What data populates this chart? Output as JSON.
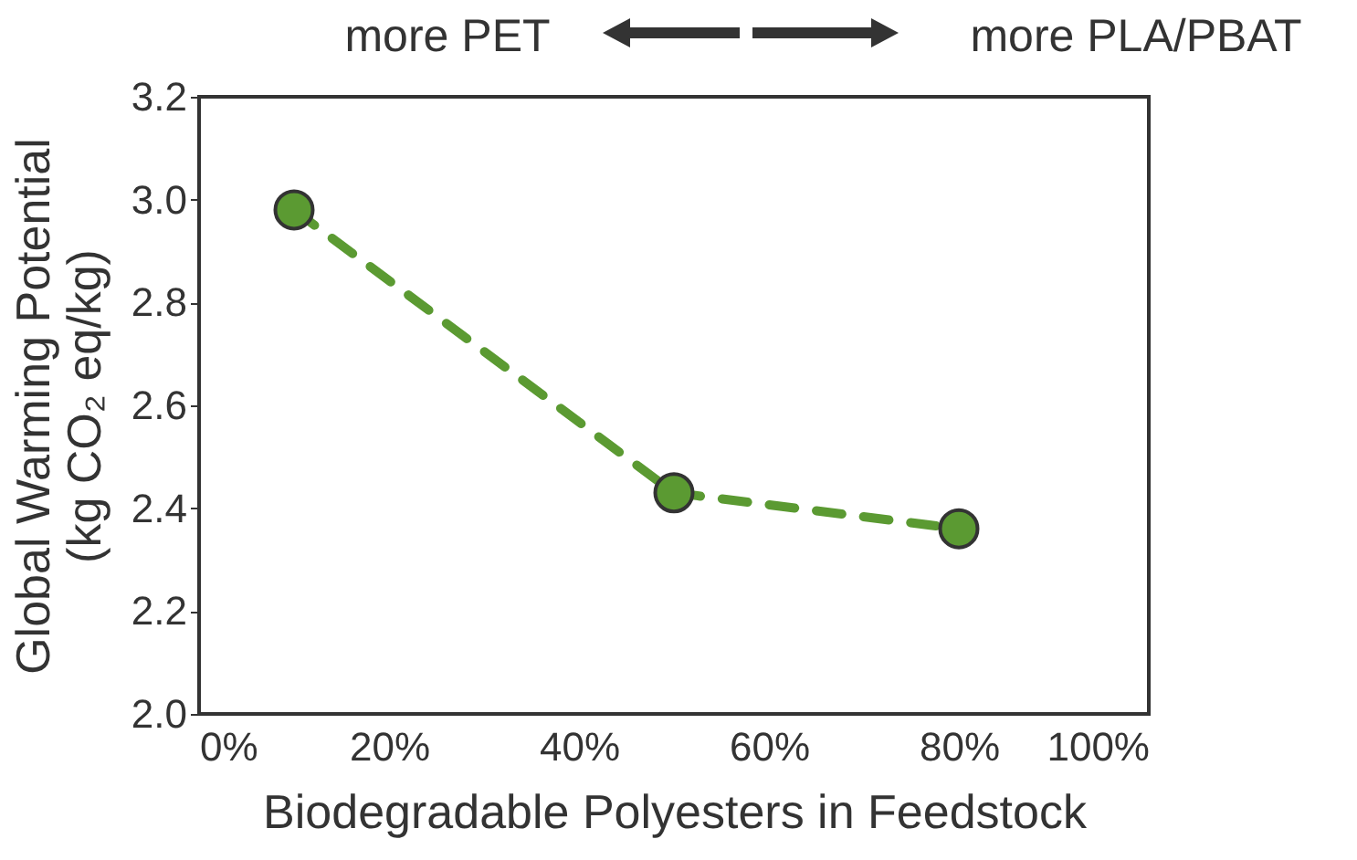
{
  "chart_data": {
    "type": "line",
    "xlabel": "Biodegradable Polyesters in Feedstock",
    "ylabel": "Global Warming Potential\n(kg CO₂ eq/kg)",
    "annotations": [
      "more PET",
      "more PLA/PBAT"
    ],
    "x": [
      10,
      50,
      80
    ],
    "series": [
      {
        "color": "#5b9a32",
        "values": [
          2.98,
          2.43,
          2.36
        ]
      }
    ],
    "xlim": [
      0,
      100
    ],
    "xticks": [
      {
        "value": 0,
        "label": "0%"
      },
      {
        "value": 20,
        "label": "20%"
      },
      {
        "value": 40,
        "label": "40%"
      },
      {
        "value": 60,
        "label": "60%"
      },
      {
        "value": 80,
        "label": "80%"
      },
      {
        "value": 100,
        "label": "100%"
      }
    ],
    "ylim": [
      2,
      3.2
    ],
    "yticks": [
      {
        "value": 2,
        "label": "2.0"
      },
      2.2,
      2.4,
      2.6,
      2.8,
      {
        "value": 3,
        "label": "3.0"
      },
      3.2
    ],
    "grid": false,
    "marker": "circle",
    "line_style": "dashed"
  }
}
